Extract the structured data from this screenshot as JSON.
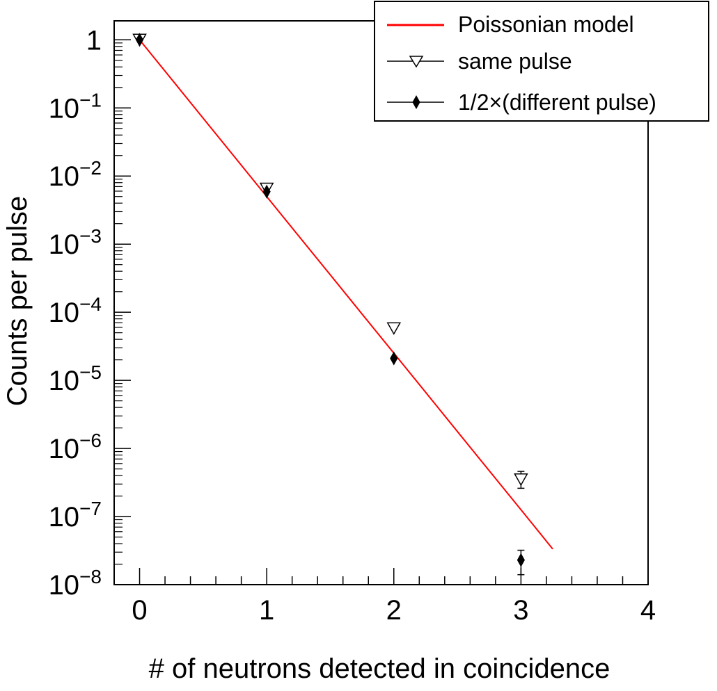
{
  "chart_data": {
    "type": "scatter",
    "xlabel": "# of neutrons detected in coincidence",
    "ylabel": "Counts per pulse",
    "xlim": [
      -0.2,
      4
    ],
    "ylim": [
      1e-08,
      1.9
    ],
    "yscale": "log",
    "x_ticks": [
      "0",
      "1",
      "2",
      "3",
      "4"
    ],
    "y_ticks": [
      {
        "base": "1",
        "exp": ""
      },
      {
        "base": "10",
        "exp": "−1"
      },
      {
        "base": "10",
        "exp": "−2"
      },
      {
        "base": "10",
        "exp": "−3"
      },
      {
        "base": "10",
        "exp": "−4"
      },
      {
        "base": "10",
        "exp": "−5"
      },
      {
        "base": "10",
        "exp": "−6"
      },
      {
        "base": "10",
        "exp": "−7"
      },
      {
        "base": "10",
        "exp": "−8"
      }
    ],
    "grid": false,
    "legend_position": "top-right",
    "series": [
      {
        "name": "Poissonian model",
        "kind": "line",
        "color": "#ff0000",
        "x": [
          0,
          0.25,
          0.5,
          0.75,
          1,
          1.25,
          1.5,
          1.75,
          2,
          2.25,
          2.5,
          2.75,
          3,
          3.25
        ],
        "y": [
          1.0,
          0.266,
          0.0707,
          0.0188,
          0.005,
          0.00133,
          0.000354,
          9.42e-05,
          2.51e-05,
          6.67e-06,
          1.77e-06,
          4.72e-07,
          1.26e-07,
          3.34e-08
        ]
      },
      {
        "name": "same pulse",
        "kind": "marker",
        "marker": "open-triangle-down",
        "color": "#000000",
        "x": [
          0,
          1,
          2,
          3
        ],
        "y": [
          1.0,
          0.0065,
          5.8e-05,
          3.5e-07
        ],
        "err_low": [
          0,
          0,
          0,
          9e-08
        ],
        "err_high": [
          0,
          0,
          0,
          1.1e-07
        ]
      },
      {
        "name": "1/2×(different pulse)",
        "kind": "marker",
        "marker": "filled-diamond",
        "color": "#000000",
        "x": [
          0,
          1,
          2,
          3
        ],
        "y": [
          1.0,
          0.0059,
          2.1e-05,
          2.3e-08
        ],
        "err_low": [
          0,
          0,
          0,
          9e-09
        ],
        "err_high": [
          0,
          0,
          0,
          9e-09
        ]
      }
    ]
  }
}
